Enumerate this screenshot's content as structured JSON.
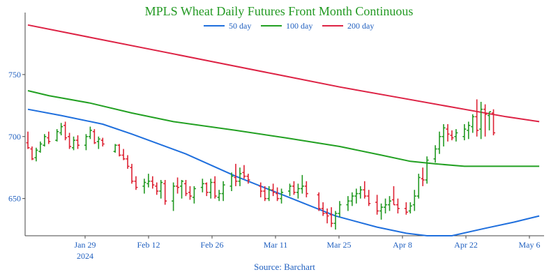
{
  "chart_data": {
    "type": "ohlc",
    "title": "MPLS Wheat Daily Futures Front Month Continuous",
    "source": "Source: Barchart",
    "xlabel": "",
    "ylabel": "",
    "ylim": [
      620,
      800
    ],
    "y_ticks": [
      "650",
      "700",
      "750"
    ],
    "x_ticks": [
      {
        "date": "2024-01-29",
        "label": "Jan 29",
        "sublabel": "2024"
      },
      {
        "date": "2024-02-12",
        "label": "Feb 12",
        "sublabel": ""
      },
      {
        "date": "2024-02-26",
        "label": "Feb 26",
        "sublabel": ""
      },
      {
        "date": "2024-03-11",
        "label": "Mar 11",
        "sublabel": ""
      },
      {
        "date": "2024-03-25",
        "label": "Mar 25",
        "sublabel": ""
      },
      {
        "date": "2024-04-08",
        "label": "Apr 8",
        "sublabel": ""
      },
      {
        "date": "2024-04-22",
        "label": "Apr 22",
        "sublabel": ""
      },
      {
        "date": "2024-05-06",
        "label": "May 6",
        "sublabel": ""
      }
    ],
    "legend": {
      "placement": "top-center"
    },
    "colors": {
      "up": "#229922",
      "down": "#dd2233",
      "ma50": "#1f6fdd",
      "ma100": "#22a022",
      "ma200": "#dd2244",
      "axis": "#444444",
      "text": "#1f5fbf"
    },
    "moving_averages": [
      {
        "name": "50 day",
        "color": "#1f6fdd",
        "values": [
          [
            0,
            722
          ],
          [
            8,
            717
          ],
          [
            18,
            710
          ],
          [
            25,
            702
          ],
          [
            38,
            686
          ],
          [
            50,
            668
          ],
          [
            62,
            652
          ],
          [
            74,
            636
          ],
          [
            84,
            627
          ],
          [
            91,
            622
          ],
          [
            96,
            620
          ],
          [
            102,
            620
          ],
          [
            110,
            626
          ],
          [
            117,
            631
          ],
          [
            123,
            636
          ]
        ]
      },
      {
        "name": "100 day",
        "color": "#22a022",
        "values": [
          [
            0,
            737
          ],
          [
            5,
            733
          ],
          [
            15,
            727
          ],
          [
            25,
            719
          ],
          [
            35,
            712
          ],
          [
            50,
            705
          ],
          [
            62,
            699
          ],
          [
            75,
            692
          ],
          [
            85,
            685
          ],
          [
            92,
            680
          ],
          [
            98,
            678
          ],
          [
            105,
            676
          ],
          [
            112,
            676
          ],
          [
            123,
            676
          ]
        ]
      },
      {
        "name": "200 day",
        "color": "#dd2244",
        "values": [
          [
            0,
            790
          ],
          [
            15,
            780
          ],
          [
            30,
            770
          ],
          [
            45,
            760
          ],
          [
            60,
            750
          ],
          [
            75,
            740
          ],
          [
            90,
            731
          ],
          [
            105,
            722
          ],
          [
            115,
            716
          ],
          [
            123,
            712
          ]
        ]
      }
    ],
    "bars": [
      [
        0,
        695,
        704,
        690,
        691
      ],
      [
        1,
        690,
        692,
        681,
        682
      ],
      [
        2,
        683,
        691,
        680,
        689
      ],
      [
        3,
        688,
        696,
        687,
        694
      ],
      [
        4,
        693,
        702,
        692,
        700
      ],
      [
        5,
        699,
        704,
        694,
        696
      ],
      [
        7,
        697,
        706,
        696,
        704
      ],
      [
        8,
        703,
        711,
        701,
        708
      ],
      [
        9,
        709,
        712,
        697,
        699
      ],
      [
        10,
        700,
        703,
        690,
        692
      ],
      [
        11,
        691,
        700,
        689,
        697
      ],
      [
        12,
        697,
        701,
        690,
        693
      ],
      [
        14,
        693,
        702,
        689,
        700
      ],
      [
        15,
        700,
        708,
        698,
        705
      ],
      [
        16,
        704,
        706,
        694,
        695
      ],
      [
        17,
        696,
        700,
        690,
        698
      ],
      [
        18,
        697,
        699,
        692,
        694
      ],
      [
        21,
        688,
        694,
        687,
        693
      ],
      [
        22,
        693,
        694,
        684,
        685
      ],
      [
        23,
        685,
        690,
        681,
        682
      ],
      [
        24,
        682,
        685,
        674,
        676
      ],
      [
        25,
        675,
        678,
        662,
        664
      ],
      [
        26,
        664,
        668,
        657,
        659
      ],
      [
        28,
        660,
        666,
        654,
        663
      ],
      [
        29,
        662,
        670,
        659,
        664
      ],
      [
        30,
        664,
        668,
        658,
        661
      ],
      [
        31,
        660,
        663,
        653,
        656
      ],
      [
        32,
        656,
        665,
        650,
        663
      ],
      [
        33,
        662,
        665,
        645,
        648
      ],
      [
        35,
        648,
        663,
        640,
        660
      ],
      [
        36,
        660,
        667,
        654,
        659
      ],
      [
        37,
        660,
        665,
        650,
        664
      ],
      [
        38,
        662,
        665,
        652,
        654
      ],
      [
        39,
        655,
        660,
        649,
        652
      ],
      [
        40,
        651,
        660,
        646,
        658
      ],
      [
        42,
        659,
        666,
        655,
        662
      ],
      [
        43,
        662,
        663,
        652,
        655
      ],
      [
        44,
        655,
        666,
        650,
        663
      ],
      [
        45,
        663,
        668,
        650,
        652
      ],
      [
        46,
        651,
        657,
        648,
        654
      ],
      [
        47,
        654,
        664,
        648,
        661
      ],
      [
        49,
        660,
        671,
        656,
        668
      ],
      [
        50,
        667,
        678,
        660,
        664
      ],
      [
        51,
        664,
        675,
        660,
        670
      ],
      [
        52,
        671,
        677,
        666,
        668
      ],
      [
        53,
        668,
        670,
        662,
        665
      ],
      [
        56,
        660,
        663,
        651,
        656
      ],
      [
        57,
        656,
        660,
        648,
        650
      ],
      [
        58,
        650,
        660,
        648,
        657
      ],
      [
        59,
        657,
        662,
        652,
        655
      ],
      [
        60,
        654,
        659,
        648,
        650
      ],
      [
        61,
        650,
        658,
        646,
        655
      ],
      [
        63,
        656,
        662,
        652,
        660
      ],
      [
        64,
        660,
        664,
        653,
        655
      ],
      [
        65,
        655,
        662,
        650,
        658
      ],
      [
        66,
        658,
        669,
        654,
        660
      ],
      [
        67,
        660,
        664,
        651,
        654
      ],
      [
        70,
        653,
        655,
        640,
        642
      ],
      [
        71,
        642,
        647,
        636,
        638
      ],
      [
        72,
        638,
        642,
        630,
        636
      ],
      [
        73,
        637,
        643,
        627,
        630
      ],
      [
        74,
        630,
        640,
        625,
        638
      ],
      [
        75,
        638,
        648,
        635,
        645
      ],
      [
        77,
        645,
        652,
        640,
        648
      ],
      [
        78,
        648,
        655,
        644,
        652
      ],
      [
        79,
        652,
        658,
        646,
        654
      ],
      [
        80,
        654,
        660,
        650,
        657
      ],
      [
        81,
        657,
        664,
        650,
        652
      ],
      [
        82,
        652,
        657,
        644,
        646
      ],
      [
        84,
        647,
        653,
        637,
        640
      ],
      [
        85,
        640,
        646,
        633,
        643
      ],
      [
        86,
        643,
        650,
        638,
        645
      ],
      [
        87,
        645,
        652,
        640,
        648
      ],
      [
        88,
        649,
        660,
        645,
        645
      ],
      [
        89,
        645,
        650,
        638,
        642
      ],
      [
        91,
        642,
        647,
        637,
        639
      ],
      [
        92,
        640,
        647,
        638,
        644
      ],
      [
        93,
        645,
        657,
        640,
        652
      ],
      [
        94,
        652,
        670,
        650,
        667
      ],
      [
        95,
        666,
        675,
        660,
        665
      ],
      [
        96,
        665,
        684,
        662,
        681
      ],
      [
        98,
        682,
        693,
        679,
        690
      ],
      [
        99,
        690,
        704,
        686,
        700
      ],
      [
        100,
        700,
        710,
        692,
        707
      ],
      [
        101,
        706,
        710,
        696,
        702
      ],
      [
        102,
        701,
        705,
        697,
        699
      ],
      [
        103,
        700,
        706,
        696,
        703
      ],
      [
        105,
        700,
        710,
        697,
        706
      ],
      [
        106,
        705,
        712,
        698,
        709
      ],
      [
        107,
        708,
        718,
        703,
        716
      ],
      [
        108,
        716,
        730,
        700,
        705
      ],
      [
        109,
        706,
        728,
        698,
        722
      ],
      [
        110,
        722,
        726,
        700,
        718
      ],
      [
        111,
        717,
        720,
        705,
        720
      ],
      [
        112,
        719,
        722,
        701,
        703
      ]
    ]
  }
}
